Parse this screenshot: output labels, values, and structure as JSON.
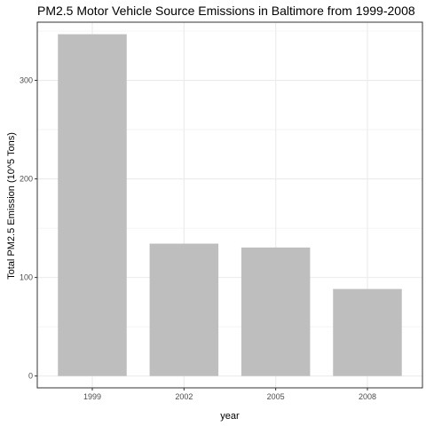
{
  "chart_data": {
    "type": "bar",
    "title": "PM2.5 Motor Vehicle Source Emissions in Baltimore from 1999-2008",
    "xlabel": "year",
    "ylabel": "Total PM2.5 Emission (10^5 Tons)",
    "categories": [
      "1999",
      "2002",
      "2005",
      "2008"
    ],
    "values": [
      346.8,
      134.3,
      130.4,
      88.3
    ],
    "ylim": [
      -12,
      359
    ],
    "yticks": [
      0,
      100,
      200,
      300
    ],
    "grid": true,
    "legend": "none",
    "colors": {
      "bar": "#bebebe",
      "grid": "#ebebeb",
      "panel_border": "#333333",
      "text": "#000000",
      "tick_text": "#4d4d4d"
    }
  }
}
